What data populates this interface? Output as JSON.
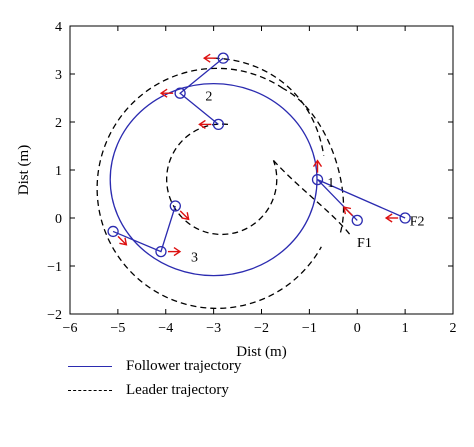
{
  "chart_data": {
    "type": "line",
    "xlabel": "Dist (m)",
    "ylabel": "Dist (m)",
    "xlim": [
      -6,
      2
    ],
    "ylim": [
      -2,
      4
    ],
    "xticks": [
      "−6",
      "−5",
      "−4",
      "−3",
      "−2",
      "−1",
      "0",
      "1",
      "2"
    ],
    "yticks": [
      "−2",
      "−1",
      "0",
      "1",
      "2",
      "3",
      "4"
    ],
    "grid": false,
    "legend_position": "bottom",
    "series": [
      {
        "name": "Follower trajectory",
        "color": "#2b2bb0",
        "style": "solid",
        "segments": [
          {
            "shape": "circle-arc",
            "center": [
              -3.0,
              0.8
            ],
            "radius": 2.0,
            "from_point": [
              -0.83,
              0.8
            ],
            "direction": "counterclockwise",
            "to_point": [
              -0.83,
              0.8
            ]
          },
          {
            "shape": "polyline",
            "points": [
              [
                1.0,
                0.0
              ],
              [
                -0.83,
                0.8
              ],
              [
                0.0,
                -0.05
              ]
            ]
          },
          {
            "shape": "polyline",
            "points": [
              [
                -2.8,
                3.33
              ],
              [
                -3.7,
                2.6
              ],
              [
                -2.9,
                1.95
              ]
            ]
          },
          {
            "shape": "polyline",
            "points": [
              [
                -5.1,
                -0.28
              ],
              [
                -4.1,
                -0.7
              ],
              [
                -3.8,
                0.25
              ]
            ]
          }
        ]
      },
      {
        "name": "Leader trajectory",
        "color": "#000000",
        "style": "dashed",
        "segments": [
          {
            "shape": "circle-arc",
            "center": [
              -2.8,
              0.8
            ],
            "radius": 2.5,
            "note": "outer loop"
          },
          {
            "shape": "circle-arc",
            "center": [
              -2.8,
              0.8
            ],
            "radius": 1.15,
            "note": "inner loop"
          }
        ]
      }
    ],
    "markers": [
      {
        "label": "F2",
        "point": [
          1.0,
          0.0
        ],
        "heading": "left"
      },
      {
        "label": "F1",
        "point": [
          0.0,
          -0.05
        ],
        "heading": "upper-left"
      },
      {
        "label": "1",
        "point": [
          -0.83,
          0.8
        ],
        "heading": "up"
      },
      {
        "label": "2",
        "point": [
          -3.7,
          2.6
        ],
        "heading": "left"
      },
      {
        "label": "",
        "point": [
          -2.8,
          3.33
        ],
        "heading": "left"
      },
      {
        "label": "",
        "point": [
          -2.9,
          1.95
        ],
        "heading": "left"
      },
      {
        "label": "3",
        "point": [
          -4.1,
          -0.7
        ],
        "heading": "right"
      },
      {
        "label": "",
        "point": [
          -5.1,
          -0.28
        ],
        "heading": "lower-right"
      },
      {
        "label": "",
        "point": [
          -3.8,
          0.25
        ],
        "heading": "lower-right"
      }
    ],
    "annotations": [
      {
        "text": "F2",
        "x": 1.25,
        "y": -0.05
      },
      {
        "text": "F1",
        "x": 0.15,
        "y": -0.5
      },
      {
        "text": "1",
        "x": -0.55,
        "y": 0.75
      },
      {
        "text": "2",
        "x": -3.1,
        "y": 2.55
      },
      {
        "text": "3",
        "x": -3.4,
        "y": -0.8
      }
    ]
  }
}
